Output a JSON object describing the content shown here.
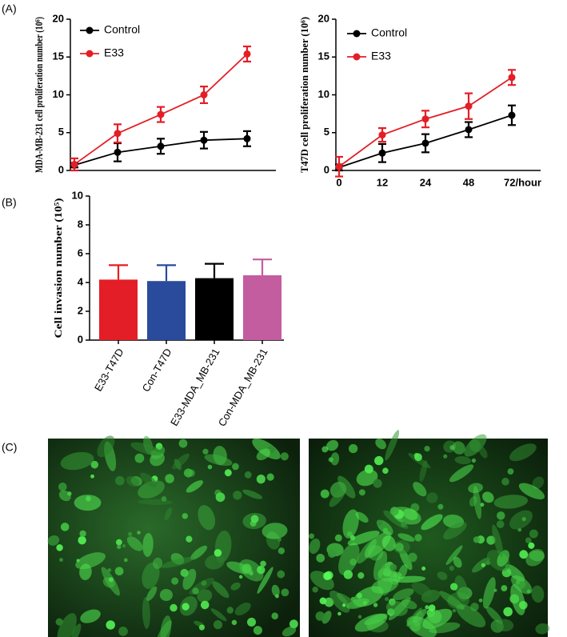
{
  "panel_labels": [
    "(A)",
    "(B)",
    "(C)"
  ],
  "chart_data": [
    {
      "type": "line",
      "ylabel": "MDA-MB-231 cell proliferation number (10⁶)",
      "categories": [
        null,
        null,
        null,
        null,
        null
      ],
      "ylim": [
        0,
        20
      ],
      "yticks": [
        0,
        5,
        10,
        15,
        20
      ],
      "legend": "upper left",
      "series": [
        {
          "name": "Control",
          "color": "#000000",
          "values": [
            0.7,
            2.4,
            3.2,
            4.0,
            4.2
          ],
          "errors": [
            0.3,
            1.2,
            1.0,
            1.1,
            1.0
          ]
        },
        {
          "name": "E33",
          "color": "#e41e26",
          "values": [
            0.8,
            4.9,
            7.4,
            10.0,
            15.4
          ],
          "errors": [
            0.8,
            1.2,
            1.0,
            1.1,
            1.0
          ]
        }
      ]
    },
    {
      "type": "line",
      "ylabel": "T47D cell proliferation number (10⁶)",
      "categories": [
        "0",
        "12",
        "24",
        "48",
        "72/hour"
      ],
      "ylim": [
        0,
        20
      ],
      "yticks": [
        0,
        5,
        10,
        15,
        20
      ],
      "legend": "upper left",
      "series": [
        {
          "name": "Control",
          "color": "#000000",
          "values": [
            0.4,
            2.3,
            3.6,
            5.4,
            7.3
          ],
          "errors": [
            0.4,
            1.2,
            1.2,
            1.0,
            1.3
          ]
        },
        {
          "name": "E33",
          "color": "#e41e26",
          "values": [
            0.5,
            4.7,
            6.8,
            8.5,
            12.3
          ],
          "errors": [
            1.3,
            0.9,
            1.1,
            1.7,
            1.0
          ]
        }
      ]
    },
    {
      "type": "bar",
      "ylabel": "Cell invasion number (10⁵)",
      "categories": [
        "E33-T47D",
        "Con-T47D",
        "E33-MDA_MB-231",
        "Con-MDA_MB-231"
      ],
      "values": [
        4.2,
        4.1,
        4.3,
        4.5
      ],
      "errors": [
        1.0,
        1.1,
        1.0,
        1.1
      ],
      "colors": [
        "#e41e26",
        "#2a4a9c",
        "#000000",
        "#c45ca0"
      ],
      "ylim": [
        0,
        10
      ],
      "yticks": [
        0,
        2,
        4,
        6,
        8,
        10
      ]
    }
  ]
}
